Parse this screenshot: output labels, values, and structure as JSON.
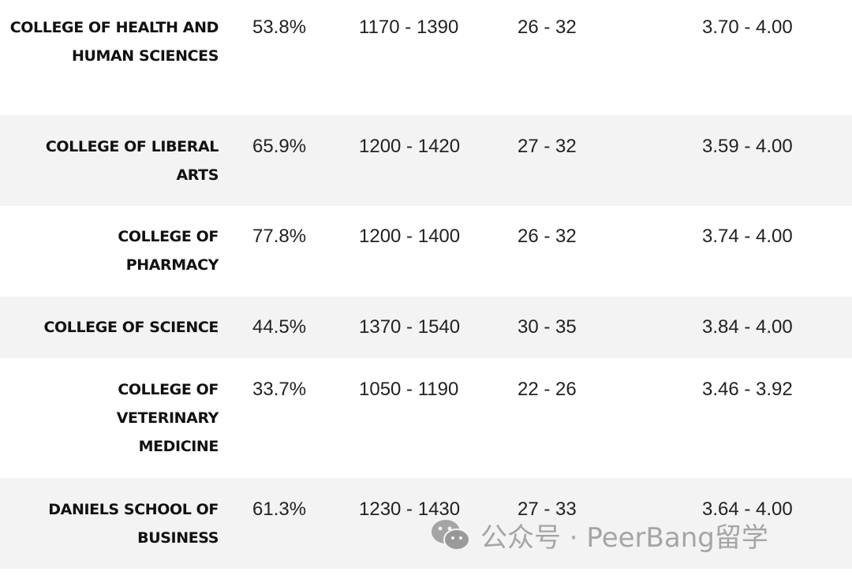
{
  "rows": [
    {
      "college": "COLLEGE OF HEALTH AND HUMAN SCIENCES",
      "rate": "53.8%",
      "sat": "1170 - 1390",
      "act": "26 - 32",
      "gpa": "3.70 - 4.00"
    },
    {
      "college": "COLLEGE OF LIBERAL ARTS",
      "rate": "65.9%",
      "sat": "1200 - 1420",
      "act": "27 - 32",
      "gpa": "3.59 - 4.00"
    },
    {
      "college": "COLLEGE OF PHARMACY",
      "rate": "77.8%",
      "sat": "1200 - 1400",
      "act": "26 - 32",
      "gpa": "3.74 - 4.00"
    },
    {
      "college": "COLLEGE OF SCIENCE",
      "rate": "44.5%",
      "sat": "1370 - 1540",
      "act": "30 - 35",
      "gpa": "3.84 - 4.00"
    },
    {
      "college": "COLLEGE OF VETERINARY MEDICINE",
      "rate": "33.7%",
      "sat": "1050 - 1190",
      "act": "22 - 26",
      "gpa": "3.46 - 3.92"
    },
    {
      "college": "DANIELS SCHOOL OF BUSINESS",
      "rate": "61.3%",
      "sat": "1230 - 1430",
      "act": "27 - 33",
      "gpa": "3.64 - 4.00"
    }
  ],
  "watermark": {
    "text": "公众号 · PeerBang留学",
    "icon": "wechat-icon"
  }
}
